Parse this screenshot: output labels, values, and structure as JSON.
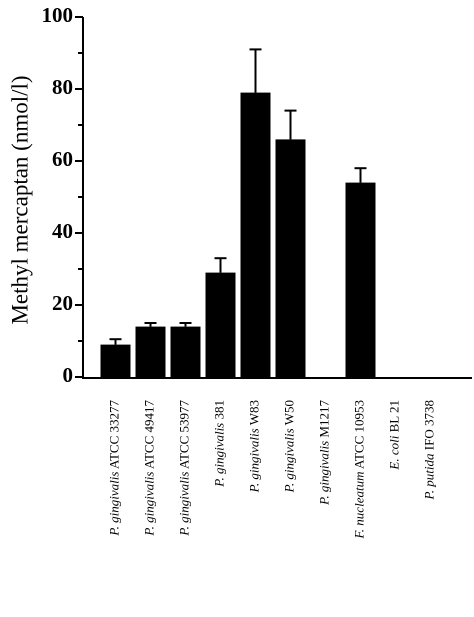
{
  "chart_data": {
    "type": "bar",
    "ylabel": "Methyl mercaptan (nmol/l)",
    "categories": [
      {
        "species": "P. gingivalis",
        "strain": "ATCC 33277"
      },
      {
        "species": "P. gingivalis",
        "strain": "ATCC 49417"
      },
      {
        "species": "P. gingivalis",
        "strain": "ATCC 53977"
      },
      {
        "species": "P. gingivalis",
        "strain": "381"
      },
      {
        "species": "P. gingivalis",
        "strain": "W83"
      },
      {
        "species": "P. gingivalis",
        "strain": "W50"
      },
      {
        "species": "P. gingivalis",
        "strain": "M1217"
      },
      {
        "species": "F. nucleatum",
        "strain": "ATCC 10953"
      },
      {
        "species": "E. coli",
        "strain": "BL 21"
      },
      {
        "species": "P. putida",
        "strain": "IFO 3738"
      }
    ],
    "values": [
      9,
      14,
      14,
      29,
      79,
      66,
      0,
      54,
      0,
      0
    ],
    "errors": [
      1.5,
      1,
      1,
      4,
      12,
      8,
      null,
      4,
      null,
      null
    ],
    "color": "#000000",
    "ylim": [
      0,
      100
    ],
    "yticks": [
      0,
      20,
      40,
      60,
      80,
      100
    ],
    "minor_yticks": [
      10,
      30,
      50,
      70,
      90
    ]
  }
}
